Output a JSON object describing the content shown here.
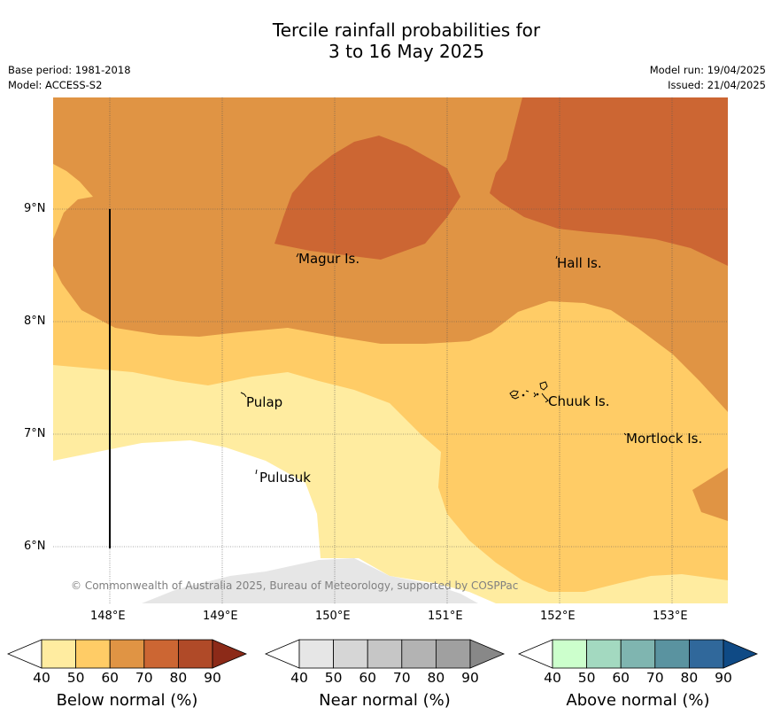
{
  "title_line1": "Tercile rainfall probabilities for",
  "title_line2": "3 to 16 May 2025",
  "base_period": "Base period: 1981-2018",
  "model": "Model: ACCESS-S2",
  "model_run": "Model run: 19/04/2025",
  "issued": "Issued: 21/04/2025",
  "copyright": "© Commonwealth of Australia 2025, Bureau of Meteorology, supported by COSPPac",
  "map": {
    "lon_ticks": [
      "148°E",
      "149°E",
      "150°E",
      "151°E",
      "152°E",
      "153°E"
    ],
    "lat_ticks": [
      "9°N",
      "8°N",
      "7°N",
      "6°N"
    ],
    "places": [
      {
        "name": "Magur Is.",
        "lon": 149.67,
        "lat": 8.57
      },
      {
        "name": "Hall Is.",
        "lon": 151.98,
        "lat": 8.53
      },
      {
        "name": "Pulap",
        "lon": 149.2,
        "lat": 7.33
      },
      {
        "name": "Chuuk Is.",
        "lon": 151.85,
        "lat": 7.33
      },
      {
        "name": "Mortlock Is.",
        "lon": 152.6,
        "lat": 6.97
      },
      {
        "name": "Pulusuk",
        "lon": 149.3,
        "lat": 6.67
      }
    ],
    "colors": {
      "below_50": "#ffeca0",
      "below_60": "#ffcc66",
      "below_70": "#e09444",
      "below_80": "#cc6633",
      "near_40": "#e6e6e6"
    }
  },
  "colorbars": [
    {
      "caption": "Below normal (%)",
      "ticks": [
        "40",
        "50",
        "60",
        "70",
        "80",
        "90"
      ],
      "colors": [
        "#ffffff",
        "#ffeca0",
        "#ffcc66",
        "#e09444",
        "#cc6633",
        "#b04a28",
        "#8c2a18"
      ]
    },
    {
      "caption": "Near normal (%)",
      "ticks": [
        "40",
        "50",
        "60",
        "70",
        "80",
        "90"
      ],
      "colors": [
        "#ffffff",
        "#e6e6e6",
        "#d6d6d6",
        "#c6c6c6",
        "#b3b3b3",
        "#a0a0a0",
        "#888888"
      ]
    },
    {
      "caption": "Above normal (%)",
      "ticks": [
        "40",
        "50",
        "60",
        "70",
        "80",
        "90"
      ],
      "colors": [
        "#ffffff",
        "#ccffcc",
        "#a3d9c0",
        "#7fb5b0",
        "#5a93a0",
        "#30689b",
        "#0f4a85"
      ]
    }
  ]
}
